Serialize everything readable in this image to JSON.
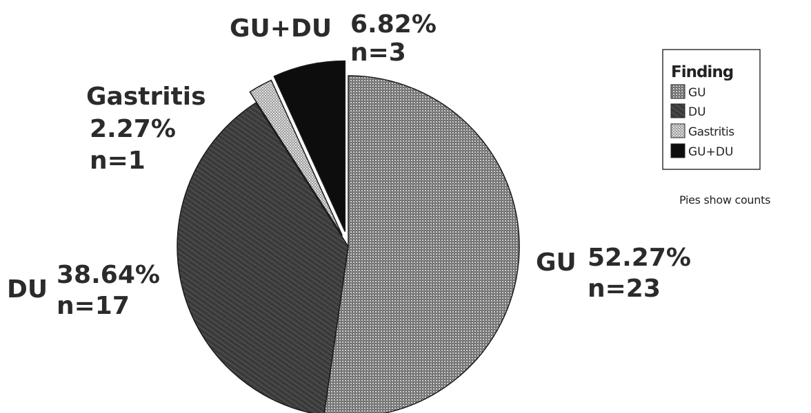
{
  "chart_data": {
    "type": "pie",
    "start_angle_deg": 0,
    "direction": "clockwise",
    "slices": [
      {
        "key": "gu",
        "label": "GU",
        "value": 23,
        "percent_label": "52.27%",
        "count_label": "n=23",
        "color": "#8a8a8a",
        "pattern": "fine-dots"
      },
      {
        "key": "du",
        "label": "DU",
        "value": 17,
        "percent_label": "38.64%",
        "count_label": "n=17",
        "color": "#3a3a3a",
        "pattern": "dark-texture"
      },
      {
        "key": "gastritis",
        "label": "Gastritis",
        "value": 1,
        "percent_label": "2.27%",
        "count_label": "n=1",
        "color": "#b8b8b8",
        "pattern": "light-hatch"
      },
      {
        "key": "gudu",
        "label": "GU+DU",
        "value": 3,
        "percent_label": "6.82%",
        "count_label": "n=3",
        "color": "#0d0d0d",
        "pattern": "solid"
      }
    ],
    "legend": {
      "title": "Finding",
      "entries": [
        "GU",
        "DU",
        "Gastritis",
        "GU+DU"
      ],
      "position": "right"
    },
    "note": "Pies show counts"
  }
}
